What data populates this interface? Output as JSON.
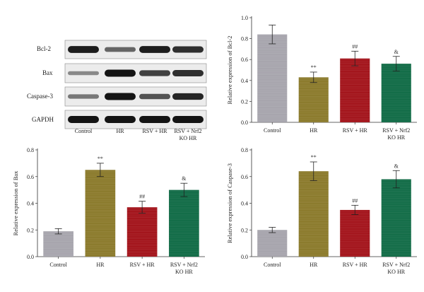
{
  "colors": {
    "control": "#a7a5ad",
    "hr": "#8b7a2c",
    "rsv_hr": "#a3141b",
    "rsv_nrf2_ko_hr": "#126c47"
  },
  "blot": {
    "bands": [
      "Bcl-2",
      "Bax",
      "Caspase-3",
      "GAPDH"
    ],
    "lanes": [
      {
        "line1": "Control",
        "line2": ""
      },
      {
        "line1": "HR",
        "line2": ""
      },
      {
        "line1": "RSV + HR",
        "line2": ""
      },
      {
        "line1": "RSV + Nrf2",
        "line2": "KO HR"
      }
    ],
    "intensity": [
      [
        0.95,
        0.55,
        0.95,
        0.85
      ],
      [
        0.35,
        1.0,
        0.75,
        0.85
      ],
      [
        0.45,
        1.0,
        0.65,
        0.9
      ],
      [
        1.0,
        1.0,
        1.0,
        1.0
      ]
    ]
  },
  "chart_data": [
    {
      "type": "bar",
      "ylabel": "Relative expression of Bcl-2",
      "categories": [
        {
          "line1": "Control",
          "line2": ""
        },
        {
          "line1": "HR",
          "line2": ""
        },
        {
          "line1": "RSV + HR",
          "line2": ""
        },
        {
          "line1": "RSV + Nrf2",
          "line2": "KO HR"
        }
      ],
      "values": [
        0.84,
        0.43,
        0.61,
        0.56
      ],
      "errors": [
        0.09,
        0.05,
        0.07,
        0.07
      ],
      "significance": [
        "",
        "**",
        "##",
        "&"
      ],
      "ylim": [
        0,
        1.0
      ],
      "yticks": [
        "0.0",
        "0.2",
        "0.4",
        "0.6",
        "0.8",
        "1.0"
      ]
    },
    {
      "type": "bar",
      "ylabel": "Relative expression of Bax",
      "categories": [
        {
          "line1": "Control",
          "line2": ""
        },
        {
          "line1": "HR",
          "line2": ""
        },
        {
          "line1": "RSV + HR",
          "line2": ""
        },
        {
          "line1": "RSV + Nrf2",
          "line2": "KO HR"
        }
      ],
      "values": [
        0.19,
        0.65,
        0.37,
        0.5
      ],
      "errors": [
        0.02,
        0.05,
        0.045,
        0.05
      ],
      "significance": [
        "",
        "**",
        "##",
        "&"
      ],
      "ylim": [
        0,
        0.8
      ],
      "yticks": [
        "0.0",
        "0.2",
        "0.4",
        "0.6",
        "0.8"
      ]
    },
    {
      "type": "bar",
      "ylabel": "Relative expression of Caspase-3",
      "categories": [
        {
          "line1": "Control",
          "line2": ""
        },
        {
          "line1": "HR",
          "line2": ""
        },
        {
          "line1": "RSV + HR",
          "line2": ""
        },
        {
          "line1": "RSV + Nrf2",
          "line2": "KO HR"
        }
      ],
      "values": [
        0.2,
        0.64,
        0.35,
        0.58
      ],
      "errors": [
        0.02,
        0.07,
        0.035,
        0.065
      ],
      "significance": [
        "",
        "**",
        "##",
        "&"
      ],
      "ylim": [
        0,
        0.8
      ],
      "yticks": [
        "0.0",
        "0.2",
        "0.4",
        "0.6",
        "0.8"
      ]
    }
  ]
}
